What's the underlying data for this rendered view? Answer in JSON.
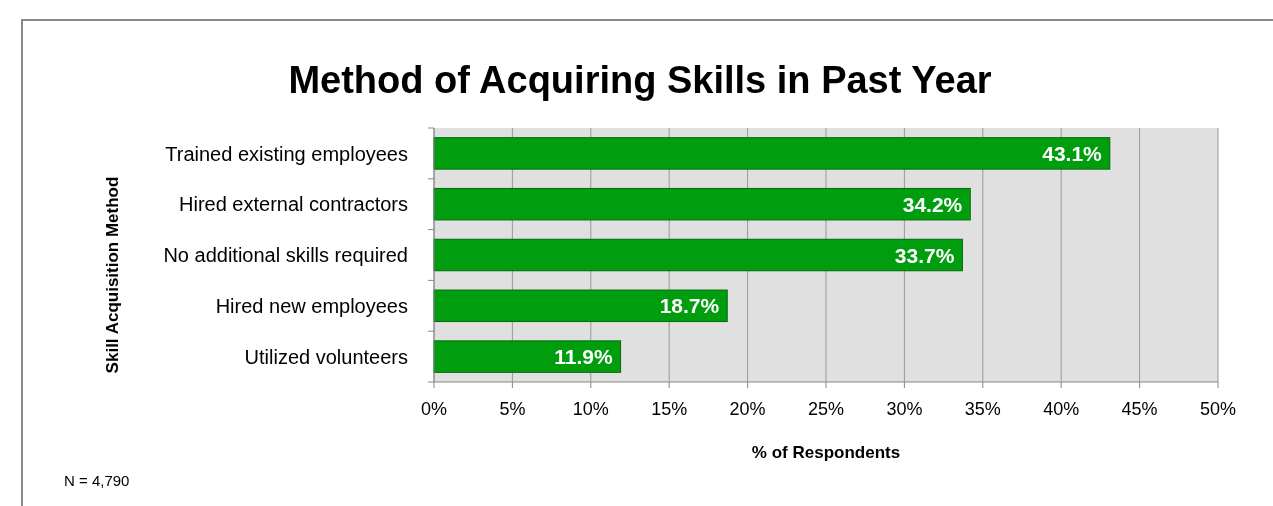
{
  "chart_data": {
    "type": "bar",
    "orientation": "horizontal",
    "title": "Method of Acquiring Skills in Past Year",
    "xlabel": "% of Respondents",
    "ylabel": "Skill Acquisition Method",
    "categories": [
      "Trained existing employees",
      "Hired external contractors",
      "No additional skills required",
      "Hired new employees",
      "Utilized volunteers"
    ],
    "values": [
      43.1,
      34.2,
      33.7,
      18.7,
      11.9
    ],
    "color": "#009e0f",
    "value_labels": [
      "43.1%",
      "34.2%",
      "33.7%",
      "18.7%",
      "11.9%"
    ],
    "xlim": [
      0,
      50
    ],
    "xticks": [
      {
        "value": 0,
        "label": "0%"
      },
      {
        "value": 5,
        "label": "5%"
      },
      {
        "value": 10,
        "label": "10%"
      },
      {
        "value": 15,
        "label": "15%"
      },
      {
        "value": 20,
        "label": "20%"
      },
      {
        "value": 25,
        "label": "25%"
      },
      {
        "value": 30,
        "label": "30%"
      },
      {
        "value": 35,
        "label": "35%"
      },
      {
        "value": 40,
        "label": "40%"
      },
      {
        "value": 45,
        "label": "45%"
      },
      {
        "value": 50,
        "label": "50%"
      }
    ],
    "grid": "x",
    "annotations": [
      "N = 4,790"
    ]
  }
}
